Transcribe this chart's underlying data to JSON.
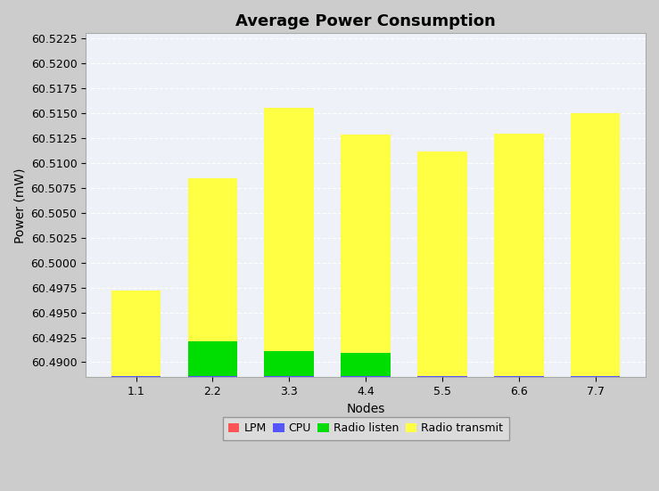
{
  "title": "Average Power Consumption",
  "xlabel": "Nodes",
  "ylabel": "Power (mW)",
  "nodes": [
    "1.1",
    "2.2",
    "3.3",
    "4.4",
    "5.5",
    "6.6",
    "7.7"
  ],
  "ylim": [
    60.4885,
    60.523
  ],
  "yticks": [
    60.49,
    60.4925,
    60.495,
    60.4975,
    60.5,
    60.5025,
    60.505,
    60.5075,
    60.51,
    60.5125,
    60.515,
    60.5175,
    60.52,
    60.5225
  ],
  "base": 60.4885,
  "lpm": [
    5e-05,
    5e-05,
    5e-05,
    5e-05,
    5e-05,
    5e-05,
    5e-05
  ],
  "cpu": [
    5e-05,
    5e-05,
    5e-05,
    5e-05,
    5e-05,
    5e-05,
    5e-05
  ],
  "radio_listen": [
    0.0,
    0.0035,
    0.0025,
    0.0023,
    0.0,
    0.0,
    0.0
  ],
  "radio_transmit": [
    0.0086,
    0.0164,
    0.0244,
    0.0219,
    0.0225,
    0.0243,
    0.0264
  ],
  "lpm_color": "#ff5555",
  "cpu_color": "#5555ff",
  "radio_listen_color": "#00dd00",
  "radio_transmit_color": "#ffff44",
  "background_color": "#cccccc",
  "plot_background_color": "#eef2f8",
  "grid_color": "#ffffff",
  "bar_width": 0.65,
  "title_fontsize": 13,
  "label_fontsize": 10,
  "tick_fontsize": 9
}
